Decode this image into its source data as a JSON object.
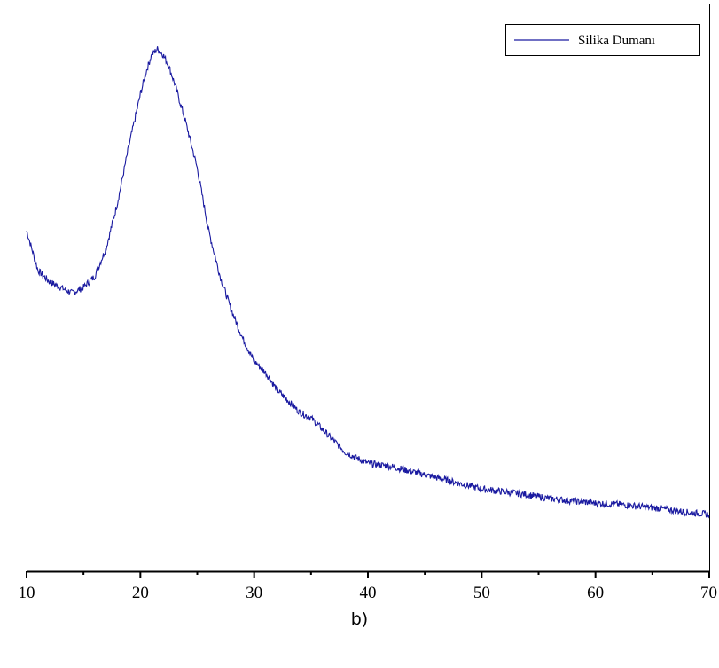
{
  "chart_data": {
    "type": "line",
    "title": "",
    "xlabel": "",
    "ylabel": "",
    "xlim": [
      10,
      70
    ],
    "ylim": [
      0,
      1
    ],
    "x_ticks": [
      10,
      20,
      30,
      40,
      50,
      60,
      70
    ],
    "y_axis_labeled": false,
    "grid": false,
    "legend_position": "top-right",
    "series": [
      {
        "name": "Silika Dumanı",
        "color": "#1a1aa0",
        "x": [
          10,
          11,
          12,
          13,
          14,
          15,
          16,
          17,
          18,
          19,
          20,
          20.5,
          21,
          21.5,
          22,
          22.5,
          23,
          24,
          25,
          26,
          27,
          28,
          29,
          30,
          31,
          32,
          33,
          34,
          35,
          36,
          37,
          38,
          39,
          40,
          42,
          44,
          46,
          48,
          50,
          52,
          54,
          56,
          58,
          60,
          62,
          64,
          66,
          68,
          70
        ],
        "y": [
          0.6,
          0.53,
          0.51,
          0.5,
          0.49,
          0.5,
          0.52,
          0.57,
          0.65,
          0.75,
          0.84,
          0.88,
          0.91,
          0.92,
          0.91,
          0.89,
          0.86,
          0.79,
          0.71,
          0.6,
          0.52,
          0.46,
          0.41,
          0.37,
          0.35,
          0.32,
          0.3,
          0.28,
          0.27,
          0.25,
          0.23,
          0.21,
          0.2,
          0.19,
          0.185,
          0.175,
          0.165,
          0.155,
          0.145,
          0.14,
          0.135,
          0.128,
          0.124,
          0.12,
          0.118,
          0.114,
          0.11,
          0.104,
          0.1
        ]
      }
    ]
  },
  "caption": "b)"
}
